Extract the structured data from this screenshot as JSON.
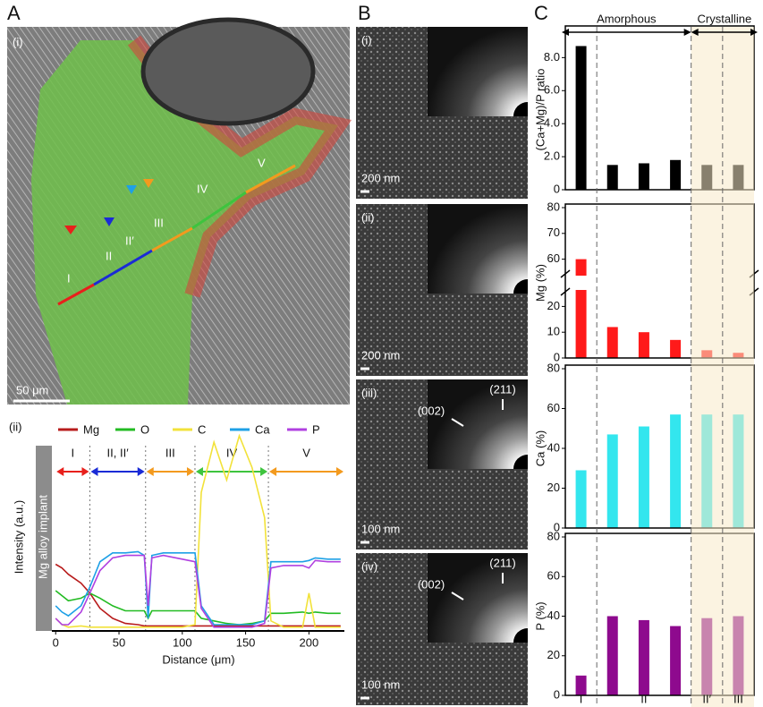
{
  "panel_labels": [
    "A",
    "B",
    "C"
  ],
  "panel_a_image": {
    "label": "(i)",
    "scale_bar": "50 μm",
    "regions": [
      "I",
      "II",
      "II′",
      "III",
      "IV",
      "V"
    ]
  },
  "panel_b_images": [
    {
      "label": "(i)",
      "scale_bar": "200 nm"
    },
    {
      "label": "(ii)",
      "scale_bar": "200 nm"
    },
    {
      "label": "(iii)",
      "scale_bar": "100 nm",
      "reflections": [
        "(002)",
        "(211)"
      ]
    },
    {
      "label": "(iv)",
      "scale_bar": "100 nm",
      "reflections": [
        "(002)",
        "(211)"
      ]
    }
  ],
  "panel_c_header": [
    "Amorphous",
    "Crystalline"
  ],
  "panel_c_shade": "#f7e9c8",
  "chart_data": [
    {
      "type": "line",
      "label": "(ii)",
      "side_label": "Mg alloy implant",
      "xlabel": "Distance (μm)",
      "ylabel": "Intensity (a.u.)",
      "x": [
        0,
        5,
        10,
        20,
        27,
        35,
        45,
        55,
        65,
        70,
        73,
        76,
        85,
        100,
        110,
        115,
        125,
        135,
        145,
        155,
        165,
        170,
        180,
        195,
        200,
        205,
        215,
        225
      ],
      "xlim": [
        -3,
        228
      ],
      "xticks": [
        0,
        50,
        100,
        150,
        200
      ],
      "ylim": [
        0,
        160
      ],
      "regions": [
        {
          "label": "I",
          "from": 0,
          "to": 27,
          "color": "#e8201c"
        },
        {
          "label": "II, II′",
          "from": 27,
          "to": 71,
          "color": "#1a2bd6"
        },
        {
          "label": "III",
          "from": 71,
          "to": 110,
          "color": "#f39a1e"
        },
        {
          "label": "IV",
          "from": 110,
          "to": 168,
          "color": "#3ec43e"
        },
        {
          "label": "V",
          "from": 168,
          "to": 228,
          "color": "#f39a1e"
        }
      ],
      "series": [
        {
          "name": "Mg",
          "color": "#b81c1c",
          "values": [
            53,
            50,
            45,
            38,
            30,
            18,
            10,
            6,
            5,
            4,
            4,
            4,
            4,
            4,
            4,
            4,
            4,
            4,
            4,
            4,
            4,
            4,
            4,
            4,
            4,
            4,
            4,
            4
          ]
        },
        {
          "name": "O",
          "color": "#22bb22",
          "values": [
            32,
            28,
            24,
            26,
            30,
            26,
            20,
            16,
            16,
            16,
            10,
            16,
            16,
            16,
            16,
            10,
            8,
            6,
            5,
            6,
            8,
            14,
            14,
            15,
            14,
            15,
            14,
            14
          ]
        },
        {
          "name": "C",
          "color": "#f2e23a",
          "values": [
            10,
            5,
            3,
            4,
            3,
            3,
            3,
            3,
            3,
            3,
            3,
            3,
            3,
            3,
            5,
            110,
            150,
            120,
            155,
            130,
            90,
            8,
            3,
            3,
            30,
            3,
            3,
            3
          ]
        },
        {
          "name": "Ca",
          "color": "#1ea0e6",
          "values": [
            20,
            15,
            12,
            20,
            35,
            55,
            62,
            62,
            63,
            60,
            10,
            60,
            62,
            62,
            62,
            20,
            5,
            5,
            5,
            5,
            8,
            55,
            55,
            55,
            56,
            58,
            57,
            57
          ]
        },
        {
          "name": "P",
          "color": "#b040e0",
          "values": [
            10,
            5,
            5,
            15,
            30,
            48,
            58,
            60,
            60,
            60,
            20,
            58,
            60,
            57,
            55,
            18,
            3,
            3,
            3,
            3,
            6,
            50,
            52,
            52,
            50,
            56,
            55,
            55
          ]
        }
      ]
    },
    {
      "type": "bar",
      "ylabel": "(Ca+Mg)/P ratio",
      "color": "#000000",
      "values": [
        8.7,
        1.5,
        1.6,
        1.8,
        1.5,
        1.5
      ],
      "ylim": [
        0,
        9.7
      ],
      "yticks": [
        0,
        {
          "value": 2,
          "label": "2.0"
        },
        {
          "value": 4,
          "label": "4.0"
        },
        {
          "value": 6,
          "label": "6.0"
        },
        {
          "value": 8,
          "label": "8.0"
        }
      ]
    },
    {
      "type": "bar",
      "ylabel": "Mg (%)",
      "color": "#ff1a1a",
      "values": [
        60,
        12,
        10,
        7,
        3,
        2
      ],
      "ylim": [
        0,
        80
      ],
      "axis_break": [
        25,
        55
      ],
      "yticks": [
        0,
        10,
        20,
        60,
        70,
        80
      ]
    },
    {
      "type": "bar",
      "ylabel": "Ca (%)",
      "color": "#33e6ee",
      "values": [
        29,
        47,
        51,
        57,
        57,
        57
      ],
      "ylim": [
        0,
        80
      ],
      "yticks": [
        0,
        20,
        40,
        60,
        80
      ]
    },
    {
      "type": "bar",
      "ylabel": "P (%)",
      "color": "#8e0a8e",
      "values": [
        10,
        40,
        38,
        35,
        39,
        40
      ],
      "ylim": [
        0,
        80
      ],
      "yticks": [
        0,
        20,
        40,
        60,
        80
      ],
      "categories": [
        "I",
        null,
        "II",
        null,
        "II′",
        "III"
      ]
    }
  ]
}
